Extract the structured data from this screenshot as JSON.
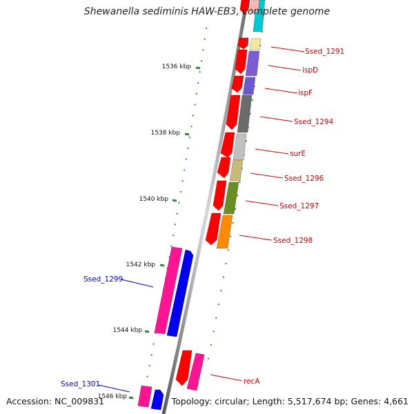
{
  "header": {
    "title": "Shewanella sediminis HAW-EB3, complete genome"
  },
  "footer": {
    "accession": "Accession: NC_009831",
    "topology": "Topology: circular; Length: 5,517,674 bp; Genes: 4,661"
  },
  "ticks": {
    "labels": [
      "1536 kbp",
      "1538 kbp",
      "1540 kbp",
      "1542 kbp",
      "1544 kbp",
      "1546 kbp"
    ]
  },
  "genes": {
    "red": [
      "Ssed_1291",
      "ispD",
      "ispF",
      "Ssed_1294",
      "surE",
      "Ssed_1296",
      "Ssed_1297",
      "Ssed_1298",
      "recA"
    ],
    "blue": [
      "Ssed_1299",
      "Ssed_1301"
    ]
  },
  "colors": {
    "forward_strand": "#ff0000",
    "reverse_strand": "#0000ff",
    "pink_strand": "#ff1493",
    "backbone": "#888888",
    "tick": "#2a8a2a"
  }
}
